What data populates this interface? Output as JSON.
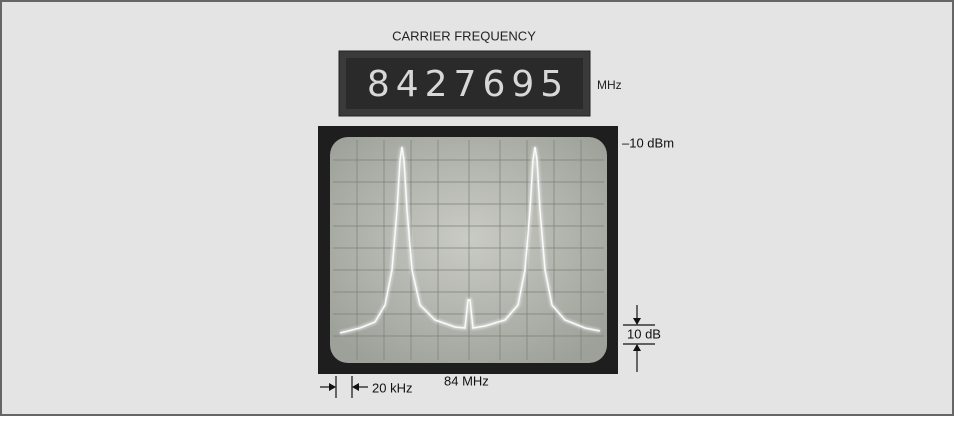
{
  "header": {
    "title": "CARRIER FREQUENCY"
  },
  "display": {
    "reading": "8427695",
    "unit": "MHz"
  },
  "labels": {
    "reference_level": "–10 dBm",
    "vertical_scale": "10 dB",
    "horizontal_scale": "20 kHz",
    "center_frequency": "84 MHz"
  }
}
